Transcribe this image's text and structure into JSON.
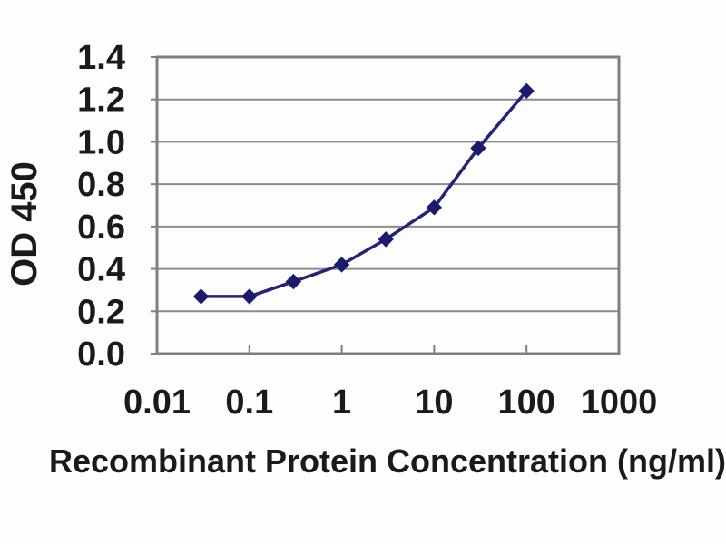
{
  "figure": {
    "description": "ELISA standard curve line chart",
    "background_color": "#fdfdfd"
  },
  "chart_data": {
    "type": "line",
    "title": "",
    "xlabel": "Recombinant Protein Concentration (ng/ml)",
    "ylabel": "OD 450",
    "x_scale": "log",
    "x": [
      0.03,
      0.1,
      0.3,
      1,
      3,
      10,
      30,
      100
    ],
    "y": [
      0.27,
      0.27,
      0.34,
      0.42,
      0.54,
      0.69,
      0.97,
      1.24
    ],
    "xlim": [
      0.01,
      1000
    ],
    "ylim": [
      0.0,
      1.4
    ],
    "x_ticks": {
      "values": [
        0.01,
        0.1,
        1,
        10,
        100,
        1000
      ],
      "labels": [
        "0.01",
        "0.1",
        "1",
        "10",
        "100",
        "1000"
      ]
    },
    "y_ticks": {
      "values": [
        0.0,
        0.2,
        0.4,
        0.6,
        0.8,
        1.0,
        1.2,
        1.4
      ],
      "labels": [
        "0.0",
        "0.2",
        "0.4",
        "0.6",
        "0.8",
        "1.0",
        "1.2",
        "1.4"
      ]
    },
    "grid": "horizontal",
    "legend": "none",
    "marker": "diamond",
    "colors": {
      "line": "#23237a",
      "marker": "#1b1b6e",
      "grid": "#8c8c8c",
      "axis": "#7f7f7f",
      "text": "#1a1a1a"
    }
  }
}
